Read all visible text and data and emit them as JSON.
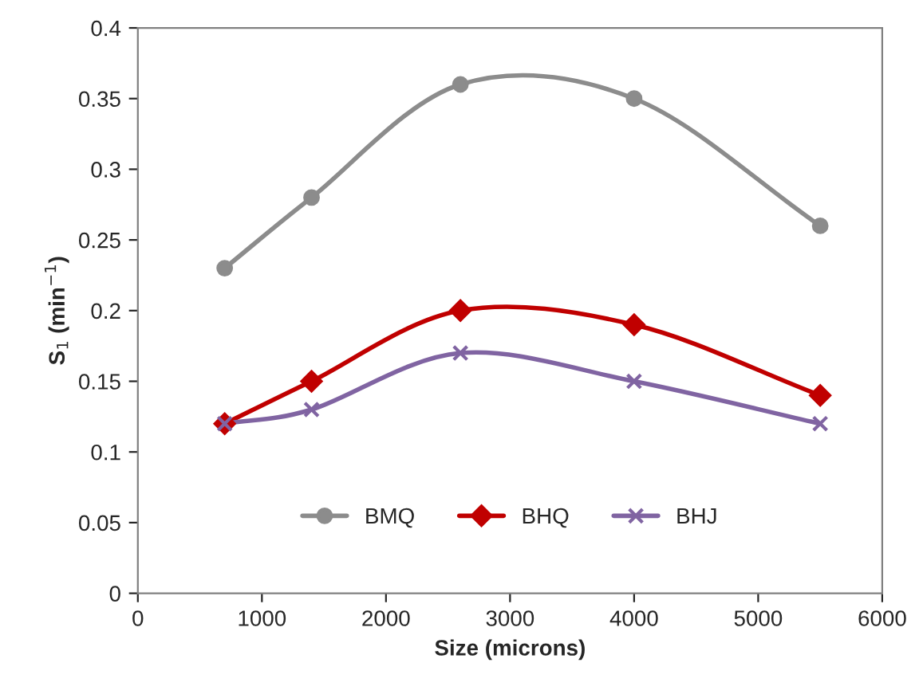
{
  "chart_data": {
    "type": "line",
    "xlabel": "Size (microns)",
    "ylabel": "S$_{1}$ (min$^{−1}$)",
    "x": [
      700,
      1400,
      2600,
      4000,
      5500
    ],
    "series": [
      {
        "name": "BMQ",
        "color": "#8c8c8c",
        "marker": "circle",
        "values": [
          0.23,
          0.28,
          0.36,
          0.35,
          0.26
        ]
      },
      {
        "name": "BHQ",
        "color": "#c00000",
        "marker": "diamond",
        "values": [
          0.12,
          0.15,
          0.2,
          0.19,
          0.14
        ]
      },
      {
        "name": "BHJ",
        "color": "#8064a2",
        "marker": "cross",
        "values": [
          0.12,
          0.13,
          0.17,
          0.15,
          0.12
        ]
      }
    ],
    "xlim": [
      0,
      6000
    ],
    "xticks": [
      0,
      1000,
      2000,
      3000,
      4000,
      5000,
      6000
    ],
    "ylim": [
      0,
      0.4
    ],
    "yticks": [
      0,
      0.05,
      0.1,
      0.15,
      0.2,
      0.25,
      0.3,
      0.35,
      0.4
    ],
    "grid": false,
    "legend": "bottom",
    "line_style": "solid"
  }
}
